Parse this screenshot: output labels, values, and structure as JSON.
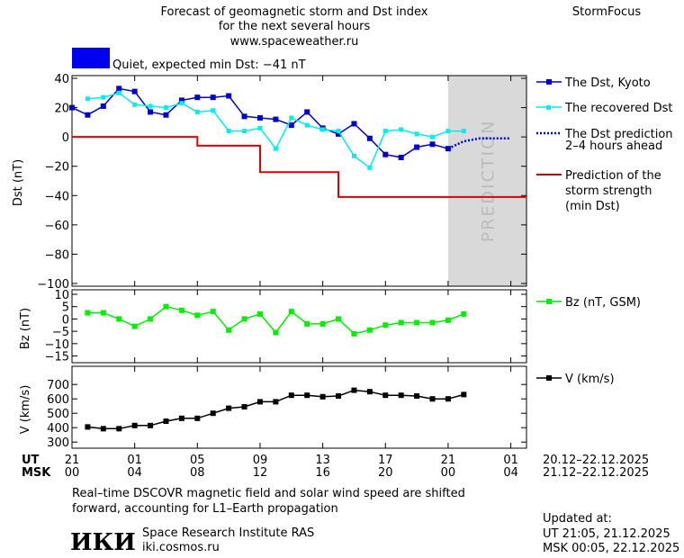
{
  "header": {
    "title_line1": "Forecast of geomagnetic storm and Dst index",
    "title_line2": "for the next several hours",
    "site": "www.spaceweather.ru",
    "brand": "StormFocus",
    "status_text": "Quiet, expected min Dst: −41 nT",
    "status_color": "#0000ee"
  },
  "colors": {
    "dst_kyoto": "#0000cc",
    "dst_recovered": "#00eeee",
    "dst_prediction": "#0000cc",
    "storm_strength": "#dd0000",
    "bz": "#00ee00",
    "v": "#000000",
    "prediction_band": "#d9d9d9"
  },
  "legend": {
    "dst_kyoto": "The Dst, Kyoto",
    "dst_recovered": "The recovered Dst",
    "dst_prediction_l1": "The Dst prediction",
    "dst_prediction_l2": "2–4 hours ahead",
    "storm_l1": "Prediction of the",
    "storm_l2": "storm strength",
    "storm_l3": "(min Dst)",
    "bz": "Bz (nT, GSM)",
    "v": "V (km/s)"
  },
  "prediction_label": "PREDICTION",
  "axes": {
    "dst_ylabel": "Dst (nT)",
    "bz_ylabel": "Bz (nT)",
    "v_ylabel": "V (km/s)",
    "ut_label": "UT",
    "msk_label": "MSK",
    "ut_ticks": [
      "21",
      "01",
      "05",
      "09",
      "13",
      "17",
      "21",
      "01"
    ],
    "msk_ticks": [
      "00",
      "04",
      "08",
      "12",
      "16",
      "20",
      "00",
      "04"
    ],
    "ut_range": "20.12–22.12.2025",
    "msk_range": "21.12–22.12.2025"
  },
  "chart_data": [
    {
      "type": "line",
      "panel": "dst",
      "xlim": [
        21,
        50
      ],
      "ylim": [
        -100,
        40
      ],
      "yticks": [
        40,
        20,
        0,
        -20,
        -40,
        -60,
        -80,
        -100
      ],
      "ytick_labels": [
        "40",
        "20",
        "0",
        "−20",
        "−40",
        "−60",
        "−80",
        "−100"
      ],
      "prediction_band": [
        45,
        49
      ],
      "series": [
        {
          "name": "The Dst, Kyoto",
          "x": [
            21,
            22,
            23,
            24,
            25,
            26,
            27,
            28,
            29,
            30,
            31,
            32,
            33,
            34,
            35,
            36,
            37,
            38,
            39,
            40,
            41,
            42,
            43,
            44,
            45
          ],
          "y": [
            20,
            15,
            21,
            33,
            31,
            17,
            15,
            25,
            27,
            27,
            28,
            14,
            13,
            12,
            8,
            17,
            6,
            2,
            9,
            -1,
            -12,
            -14,
            -7,
            -5,
            -8
          ]
        },
        {
          "name": "The recovered Dst",
          "x": [
            22,
            23,
            24,
            25,
            26,
            27,
            28,
            29,
            30,
            31,
            32,
            33,
            34,
            35,
            36,
            37,
            38,
            39,
            40,
            41,
            42,
            43,
            44,
            45,
            46
          ],
          "y": [
            26,
            27,
            30,
            22,
            21,
            20,
            23,
            17,
            18,
            4,
            4,
            6,
            -8,
            13,
            8,
            5,
            4,
            -13,
            -21,
            4,
            5,
            2,
            0,
            4,
            4
          ]
        },
        {
          "name": "The Dst prediction 2–4 hours ahead",
          "x": [
            45,
            46,
            47,
            48,
            49
          ],
          "y": [
            -8,
            -3,
            -1,
            -1,
            -1
          ]
        },
        {
          "name": "Prediction of the storm strength (min Dst)",
          "step": true,
          "x": [
            21,
            29,
            29,
            31,
            31,
            33,
            33,
            37,
            37,
            38,
            38,
            50
          ],
          "y": [
            0,
            0,
            -6,
            -6,
            -6,
            -6,
            -24,
            -24,
            -24,
            -24,
            -41,
            -41
          ]
        }
      ]
    },
    {
      "type": "line",
      "panel": "bz",
      "xlim": [
        21,
        50
      ],
      "ylim": [
        -17,
        10
      ],
      "yticks": [
        10,
        5,
        0,
        -5,
        -10,
        -15
      ],
      "ytick_labels": [
        "10",
        "5",
        "0",
        "−5",
        "−10",
        "−15"
      ],
      "series": [
        {
          "name": "Bz (nT, GSM)",
          "x": [
            22,
            23,
            24,
            25,
            26,
            27,
            28,
            29,
            30,
            31,
            32,
            33,
            34,
            35,
            36,
            37,
            38,
            39,
            40,
            41,
            42,
            43,
            44,
            45,
            46
          ],
          "y": [
            2.5,
            2.5,
            0,
            -3,
            0,
            5,
            3.5,
            1.5,
            3,
            -4.5,
            0,
            2,
            -5.5,
            3,
            -2,
            -2,
            0,
            -6,
            -4.5,
            -2.5,
            -1.5,
            -1.5,
            -1.5,
            -0.5,
            2
          ]
        }
      ]
    },
    {
      "type": "line",
      "panel": "v",
      "xlim": [
        21,
        50
      ],
      "ylim": [
        270,
        770
      ],
      "yticks": [
        700,
        600,
        500,
        400,
        300
      ],
      "ytick_labels": [
        "700",
        "600",
        "500",
        "400",
        "300"
      ],
      "series": [
        {
          "name": "V (km/s)",
          "x": [
            22,
            23,
            24,
            25,
            26,
            27,
            28,
            29,
            30,
            31,
            32,
            33,
            34,
            35,
            36,
            37,
            38,
            39,
            40,
            41,
            42,
            43,
            44,
            45,
            46
          ],
          "y": [
            405,
            393,
            393,
            415,
            415,
            445,
            465,
            465,
            500,
            535,
            545,
            580,
            580,
            625,
            625,
            615,
            620,
            660,
            650,
            625,
            625,
            620,
            600,
            600,
            630
          ]
        }
      ]
    }
  ],
  "footer": {
    "note_line1": "Real–time DSCOVR magnetic field and solar wind speed are shifted",
    "note_line2": "forward, accounting for L1–Earth propagation",
    "logo_text": "ИКИ",
    "institute": "Space Research Institute RAS",
    "institute_site": "iki.cosmos.ru",
    "updated_label": "Updated at:",
    "updated_ut": "UT   21:05, 21.12.2025",
    "updated_msk": "MSK 00:05, 22.12.2025"
  }
}
